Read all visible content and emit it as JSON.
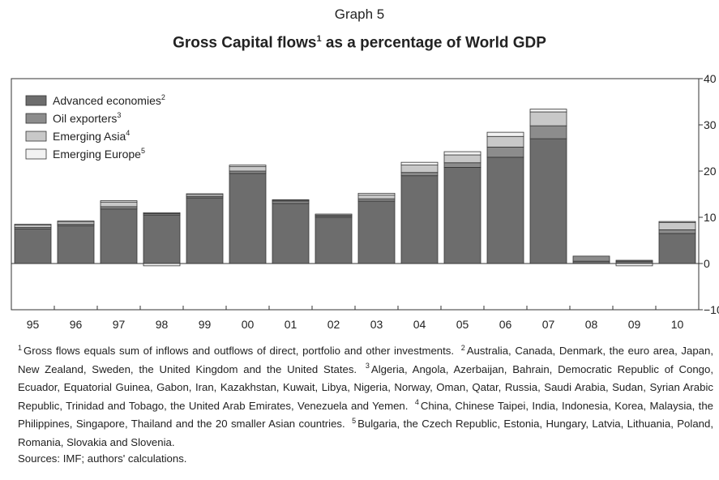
{
  "header": {
    "graph_label": "Graph 5",
    "title_main": "Gross Capital flows",
    "title_sup": "1",
    "title_rest": " as a percentage of World GDP"
  },
  "chart_data": {
    "type": "bar",
    "stacked": true,
    "categories": [
      "95",
      "96",
      "97",
      "98",
      "99",
      "00",
      "01",
      "02",
      "03",
      "04",
      "05",
      "06",
      "07",
      "08",
      "09",
      "10"
    ],
    "series": [
      {
        "name": "Advanced economies",
        "sup": "2",
        "color": "#6d6d6d",
        "values": [
          7.5,
          8.2,
          11.8,
          10.5,
          14.2,
          19.5,
          13.0,
          10.0,
          13.5,
          19.0,
          20.8,
          23.0,
          27.0,
          0.5,
          0.5,
          6.5
        ]
      },
      {
        "name": "Oil exporters",
        "sup": "3",
        "color": "#8c8c8c",
        "values": [
          0.3,
          0.3,
          0.5,
          0.3,
          0.3,
          0.5,
          0.5,
          0.3,
          0.5,
          0.7,
          1.0,
          2.2,
          2.8,
          1.1,
          0.2,
          0.8
        ]
      },
      {
        "name": "Emerging Asia",
        "sup": "4",
        "color": "#c8c8c8",
        "values": [
          0.5,
          0.5,
          1.0,
          0.2,
          0.4,
          1.0,
          0.2,
          0.2,
          0.8,
          1.6,
          1.7,
          2.3,
          3.0,
          0.0,
          0.0,
          1.6
        ]
      },
      {
        "name": "Emerging Europe",
        "sup": "5",
        "color": "#f2f2f2",
        "values": [
          0.2,
          0.2,
          0.3,
          -0.5,
          0.2,
          0.3,
          0.1,
          0.2,
          0.4,
          0.6,
          0.7,
          0.9,
          0.6,
          0.0,
          -0.5,
          0.2
        ]
      }
    ],
    "y_axis": {
      "min": -10,
      "max": 40,
      "ticks": [
        40,
        30,
        20,
        10,
        0,
        -10
      ],
      "position": "right"
    },
    "grid": false,
    "legend": "top-left"
  },
  "notes": [
    {
      "sup": "1",
      "text": "Gross flows equals sum of inflows and outflows of direct, portfolio and other investments."
    },
    {
      "sup": "2",
      "text": "Australia, Canada, Denmark, the euro area, Japan, New Zealand, Sweden, the United Kingdom and the United States."
    },
    {
      "sup": "3",
      "text": "Algeria, Angola, Azerbaijan, Bahrain, Democratic Republic of Congo, Ecuador, Equatorial Guinea, Gabon, Iran, Kazakhstan, Kuwait, Libya, Nigeria, Norway, Oman, Qatar, Russia, Saudi Arabia, Sudan, Syrian Arabic Republic, Trinidad and Tobago, the United Arab Emirates, Venezuela and Yemen."
    },
    {
      "sup": "4",
      "text": "China, Chinese Taipei, India, Indonesia, Korea, Malaysia, the Philippines, Singapore, Thailand and the 20 smaller Asian countries."
    },
    {
      "sup": "5",
      "text": "Bulgaria, the Czech Republic, Estonia, Hungary, Latvia, Lithuania, Poland, Romania, Slovakia and Slovenia."
    }
  ],
  "sources": "Sources: IMF; authors' calculations."
}
